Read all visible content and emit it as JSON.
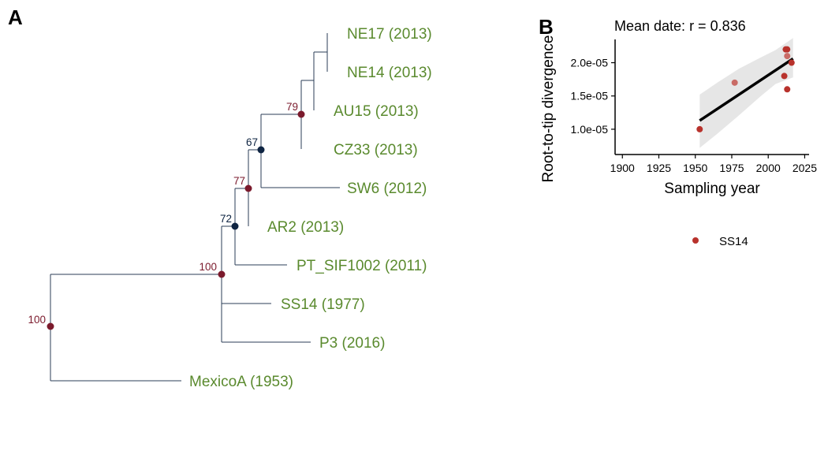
{
  "panels": {
    "a_label": "A",
    "b_label": "B"
  },
  "colors": {
    "branch": "#2b3d57",
    "tip_label": "#5a8a2e",
    "support_high": "#7b1a2c",
    "support_low": "#0e2442",
    "point": "#b8322c",
    "point_light": "#c96b66",
    "fit_line": "#000000",
    "ci_band": "#e6e6e6"
  },
  "chart_data": [
    {
      "type": "tree",
      "tips": [
        {
          "label": "NE17 (2013)"
        },
        {
          "label": "NE14 (2013)"
        },
        {
          "label": "AU15 (2013)"
        },
        {
          "label": "CZ33 (2013)"
        },
        {
          "label": "SW6 (2012)"
        },
        {
          "label": "AR2 (2013)"
        },
        {
          "label": "PT_SIF1002 (2011)"
        },
        {
          "label": "SS14 (1977)"
        },
        {
          "label": "P3 (2016)"
        },
        {
          "label": "MexicoA (1953)"
        }
      ],
      "support_values": [
        {
          "node": "root",
          "value": "100",
          "level": "high"
        },
        {
          "node": "ingroup",
          "value": "100",
          "level": "high"
        },
        {
          "node": "excluding-ss14-p3",
          "value": "72",
          "level": "low"
        },
        {
          "node": "excluding-ar2",
          "value": "77",
          "level": "high"
        },
        {
          "node": "excluding-sw6",
          "value": "67",
          "level": "low"
        },
        {
          "node": "ne-au-cz",
          "value": "79",
          "level": "high"
        }
      ]
    },
    {
      "type": "scatter",
      "title": "Mean date: r = 0.836",
      "xlabel": "Sampling year",
      "ylabel": "Root-to-tip divergence",
      "xlim": [
        1895,
        2028
      ],
      "ylim": [
        6.2e-06,
        2.35e-05
      ],
      "xticks": [
        {
          "value": 1900,
          "label": "1900"
        },
        {
          "value": 1925,
          "label": "1925"
        },
        {
          "value": 1950,
          "label": "1950"
        },
        {
          "value": 1975,
          "label": "1975"
        },
        {
          "value": 2000,
          "label": "2000"
        },
        {
          "value": 2025,
          "label": "2025"
        }
      ],
      "yticks": [
        {
          "value": 1e-05,
          "label": "1.0e-05"
        },
        {
          "value": 1.5e-05,
          "label": "1.5e-05"
        },
        {
          "value": 2e-05,
          "label": "2.0e-05"
        }
      ],
      "points": [
        {
          "x": 1953,
          "y": 1e-05,
          "light": false
        },
        {
          "x": 1977,
          "y": 1.7e-05,
          "light": true
        },
        {
          "x": 2011,
          "y": 1.8e-05,
          "light": false
        },
        {
          "x": 2012,
          "y": 2.2e-05,
          "light": false
        },
        {
          "x": 2013,
          "y": 2.2e-05,
          "light": false
        },
        {
          "x": 2013,
          "y": 2.1e-05,
          "light": true
        },
        {
          "x": 2013,
          "y": 1.6e-05,
          "light": false
        },
        {
          "x": 2016,
          "y": 2e-05,
          "light": false
        }
      ],
      "fit": {
        "x": [
          1953,
          2017
        ],
        "y": [
          1.13e-05,
          2.06e-05
        ]
      },
      "ci_band": {
        "x": [
          1953,
          1965,
          1980,
          1995,
          2005,
          2017
        ],
        "upper": [
          1.52e-05,
          1.7e-05,
          1.91e-05,
          2.08e-05,
          2.19e-05,
          2.37e-05
        ],
        "lower": [
          7.2e-06,
          9.3e-06,
          1.21e-05,
          1.5e-05,
          1.68e-05,
          1.78e-05
        ]
      },
      "legend": {
        "label": "SS14",
        "position": "bottom"
      }
    }
  ]
}
